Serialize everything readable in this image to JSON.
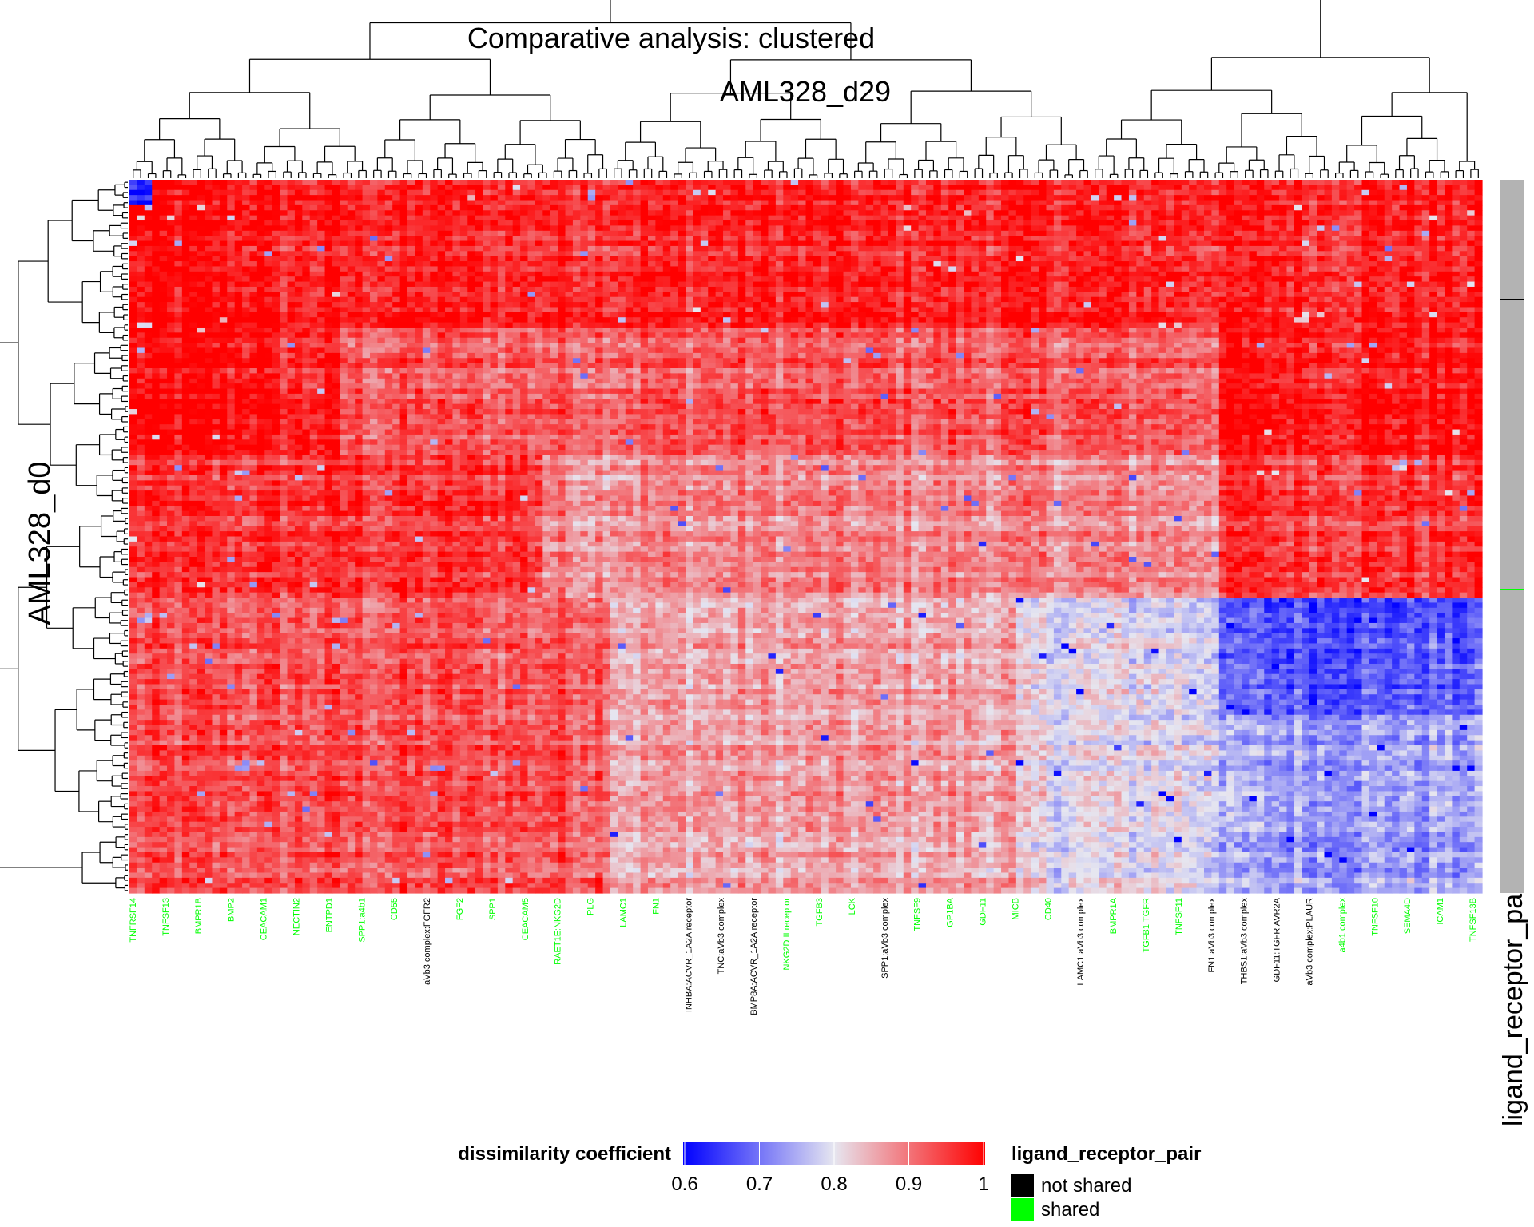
{
  "chart_data": {
    "type": "heatmap",
    "title": "Comparative analysis: clustered",
    "column_title": "AML328_d29",
    "row_title": "AML328_d0",
    "annotation_title": "ligand_receptor_pair",
    "colorbar": {
      "title": "dissimilarity coefficient",
      "range": [
        0.6,
        1
      ],
      "ticks": [
        "0.6",
        "0.7",
        "0.8",
        "0.9",
        "1"
      ],
      "colors": {
        "low": "#0000ff",
        "mid": "#e6e6f0",
        "high": "#ff0000"
      }
    },
    "annotation_legend": {
      "title": "ligand_receptor_pair",
      "items": [
        {
          "label": "not shared",
          "color": "#000000"
        },
        {
          "label": "shared",
          "color": "#00ff00"
        }
      ]
    },
    "column_labels": [
      {
        "text": "TNFRSF14",
        "shared": true
      },
      {
        "text": "TNFSF13",
        "shared": true
      },
      {
        "text": "BMPR1B",
        "shared": true
      },
      {
        "text": "BMP2",
        "shared": true
      },
      {
        "text": "CEACAM1",
        "shared": true
      },
      {
        "text": "NECTIN2",
        "shared": true
      },
      {
        "text": "ENTPD1",
        "shared": true
      },
      {
        "text": "SPP1:a4b1",
        "shared": true
      },
      {
        "text": "CD55",
        "shared": true
      },
      {
        "text": "aVb3 complex:FGFR2",
        "shared": false
      },
      {
        "text": "FGF2",
        "shared": true
      },
      {
        "text": "SPP1",
        "shared": true
      },
      {
        "text": "CEACAM5",
        "shared": true
      },
      {
        "text": "RAET1E:NKG2D",
        "shared": true
      },
      {
        "text": "PLG",
        "shared": true
      },
      {
        "text": "LAMC1",
        "shared": true
      },
      {
        "text": "FN1",
        "shared": true
      },
      {
        "text": "INHBA:ACVR_1A2A receptor",
        "shared": false
      },
      {
        "text": "TNC:aVb3 complex",
        "shared": false
      },
      {
        "text": "BMP8A:ACVR_1A2A receptor",
        "shared": false
      },
      {
        "text": "NKG2D II receptor",
        "shared": true
      },
      {
        "text": "TGFB3",
        "shared": true
      },
      {
        "text": "LCK",
        "shared": true
      },
      {
        "text": "SPP1:aVb3 complex",
        "shared": false
      },
      {
        "text": "TNFSF9",
        "shared": true
      },
      {
        "text": "GP1BA",
        "shared": true
      },
      {
        "text": "GDF11",
        "shared": true
      },
      {
        "text": "MICB",
        "shared": true
      },
      {
        "text": "CD40",
        "shared": true
      },
      {
        "text": "LAMC1:aVb3 complex",
        "shared": false
      },
      {
        "text": "BMPR1A",
        "shared": true
      },
      {
        "text": "TGFB1:TGFR",
        "shared": true
      },
      {
        "text": "TNFSF11",
        "shared": true
      },
      {
        "text": "FN1:aVb3 complex",
        "shared": false
      },
      {
        "text": "THBS1:aVb3 complex",
        "shared": false
      },
      {
        "text": "GDF11:TGFR AVR2A",
        "shared": false
      },
      {
        "text": "aVb3 complex:PLAUR",
        "shared": false
      },
      {
        "text": "a4b1 complex",
        "shared": true
      },
      {
        "text": "TNFSF10",
        "shared": true
      },
      {
        "text": "SEMA4D",
        "shared": true
      },
      {
        "text": "ICAM1",
        "shared": true
      },
      {
        "text": "TNFSF13B",
        "shared": true
      }
    ],
    "row_groups": [
      {
        "label": "not shared",
        "shared": false
      },
      {
        "label": "shared",
        "shared": true
      }
    ]
  }
}
